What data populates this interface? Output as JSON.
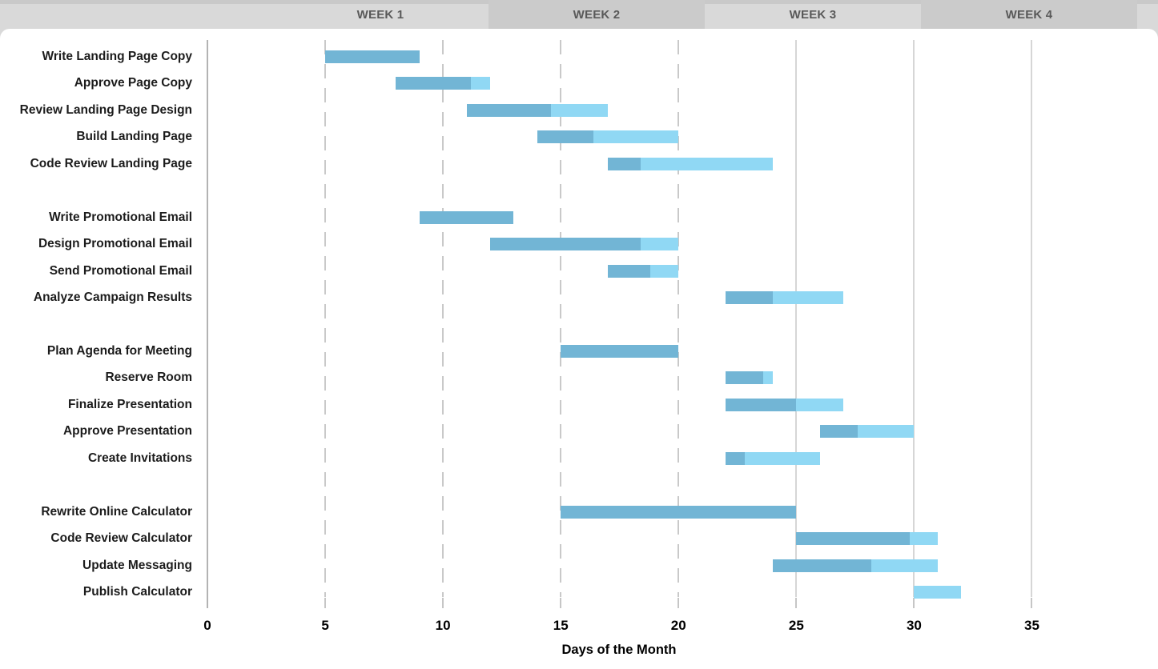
{
  "chart_data": {
    "type": "bar",
    "variant": "gantt",
    "title": "",
    "xlabel": "Days of the Month",
    "x_ticks": [
      0,
      5,
      10,
      15,
      20,
      25,
      30,
      35
    ],
    "xlim": [
      0,
      40.4
    ],
    "grid": {
      "dashed_days": [
        5,
        10,
        15,
        20
      ],
      "solid_days": [
        25,
        30,
        35
      ]
    },
    "legend": "none",
    "week_headers": [
      {
        "label": "WEEK 1",
        "shade": "light"
      },
      {
        "label": "WEEK 2",
        "shade": "dark"
      },
      {
        "label": "WEEK 3",
        "shade": "light"
      },
      {
        "label": "WEEK 4",
        "shade": "dark"
      }
    ],
    "colors": {
      "bar_complete": "#72b5d5",
      "bar_remaining": "#90d8f4",
      "band_light": "#d9d9d9",
      "band_dark": "#cbcbcb",
      "week_text": "#595959",
      "grid_dashed": "#c9c9c9",
      "grid_solid": "#d6d6d6",
      "axis_line": "#b3b3b3"
    },
    "tasks": [
      {
        "label": "Write Landing Page Copy",
        "start": 5,
        "duration": 4,
        "pct_complete": 100,
        "group": 0
      },
      {
        "label": "Approve Page Copy",
        "start": 8,
        "duration": 4,
        "pct_complete": 80,
        "group": 0
      },
      {
        "label": "Review Landing Page Design",
        "start": 11,
        "duration": 6,
        "pct_complete": 60,
        "group": 0
      },
      {
        "label": "Build Landing Page",
        "start": 14,
        "duration": 6,
        "pct_complete": 40,
        "group": 0
      },
      {
        "label": "Code Review Landing Page",
        "start": 17,
        "duration": 7,
        "pct_complete": 20,
        "group": 0
      },
      {
        "label": "Write Promotional Email",
        "start": 9,
        "duration": 4,
        "pct_complete": 100,
        "group": 1
      },
      {
        "label": "Design Promotional Email",
        "start": 12,
        "duration": 8,
        "pct_complete": 80,
        "group": 1
      },
      {
        "label": "Send Promotional Email",
        "start": 17,
        "duration": 3,
        "pct_complete": 60,
        "group": 1
      },
      {
        "label": "Analyze Campaign Results",
        "start": 22,
        "duration": 5,
        "pct_complete": 40,
        "group": 1
      },
      {
        "label": "Plan Agenda for Meeting",
        "start": 15,
        "duration": 5,
        "pct_complete": 100,
        "group": 2
      },
      {
        "label": "Reserve Room",
        "start": 22,
        "duration": 2,
        "pct_complete": 80,
        "group": 2
      },
      {
        "label": "Finalize Presentation",
        "start": 22,
        "duration": 5,
        "pct_complete": 60,
        "group": 2
      },
      {
        "label": "Approve Presentation",
        "start": 26,
        "duration": 4,
        "pct_complete": 40,
        "group": 2
      },
      {
        "label": "Create Invitations",
        "start": 22,
        "duration": 4,
        "pct_complete": 20,
        "group": 2
      },
      {
        "label": "Rewrite Online Calculator",
        "start": 15,
        "duration": 10,
        "pct_complete": 100,
        "group": 3
      },
      {
        "label": "Code Review Calculator",
        "start": 25,
        "duration": 6,
        "pct_complete": 80,
        "group": 3
      },
      {
        "label": "Update Messaging",
        "start": 24,
        "duration": 7,
        "pct_complete": 60,
        "group": 3
      },
      {
        "label": "Publish Calculator",
        "start": 30,
        "duration": 2,
        "pct_complete": 0,
        "group": 3
      }
    ]
  }
}
